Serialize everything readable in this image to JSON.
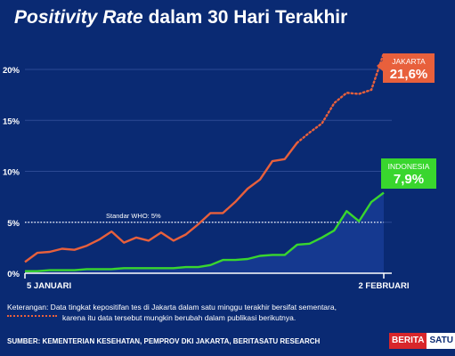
{
  "title": {
    "italic": "Positivity Rate",
    "rest": "dalam 30 Hari Terakhir"
  },
  "chart_data": {
    "type": "line",
    "title": "Positivity Rate dalam 30 Hari Terakhir",
    "x_start_label": "5 JANUARI",
    "x_end_label": "2 FEBRUARI",
    "x_count": 30,
    "ylim": [
      0,
      22
    ],
    "yticks": [
      "0%",
      "5%",
      "10%",
      "15%",
      "20%"
    ],
    "ytick_values": [
      0,
      5,
      10,
      15,
      20
    ],
    "grid": true,
    "reference_line": {
      "label": "Standar WHO: 5%",
      "value": 5
    },
    "series": [
      {
        "name": "JAKARTA",
        "color": "#e8603c",
        "solid_until_index": 22,
        "values": [
          1.1,
          2.0,
          2.1,
          2.4,
          2.3,
          2.7,
          3.3,
          4.1,
          3.0,
          3.5,
          3.2,
          4.0,
          3.2,
          3.8,
          4.8,
          5.9,
          5.9,
          7.0,
          8.3,
          9.2,
          11.0,
          11.2,
          12.8,
          13.8,
          14.7,
          16.7,
          17.7,
          17.6,
          18.0,
          21.6
        ],
        "end_label": "21,6%"
      },
      {
        "name": "INDONESIA",
        "color": "#39d62e",
        "values": [
          0.2,
          0.2,
          0.3,
          0.3,
          0.3,
          0.4,
          0.4,
          0.4,
          0.5,
          0.5,
          0.5,
          0.5,
          0.5,
          0.6,
          0.6,
          0.8,
          1.3,
          1.3,
          1.4,
          1.7,
          1.8,
          1.8,
          2.8,
          2.9,
          3.5,
          4.2,
          6.1,
          5.1,
          7.0,
          7.9
        ],
        "end_label": "7,9%"
      }
    ]
  },
  "notes": {
    "line1": "Keterangan: Data tingkat kepositifan tes di Jakarta dalam satu minggu terakhir bersifat sementara,",
    "line2": "karena itu data tersebut mungkin berubah dalam publikasi berikutnya."
  },
  "source": "SUMBER: KEMENTERIAN KESEHATAN, PEMPROV DKI JAKARTA, BERITASATU RESEARCH",
  "logo": {
    "part1": "BERITA",
    "part2": "SATU"
  },
  "colors": {
    "background": "#0a2a73",
    "jakarta": "#e8603c",
    "indonesia": "#39d62e"
  }
}
